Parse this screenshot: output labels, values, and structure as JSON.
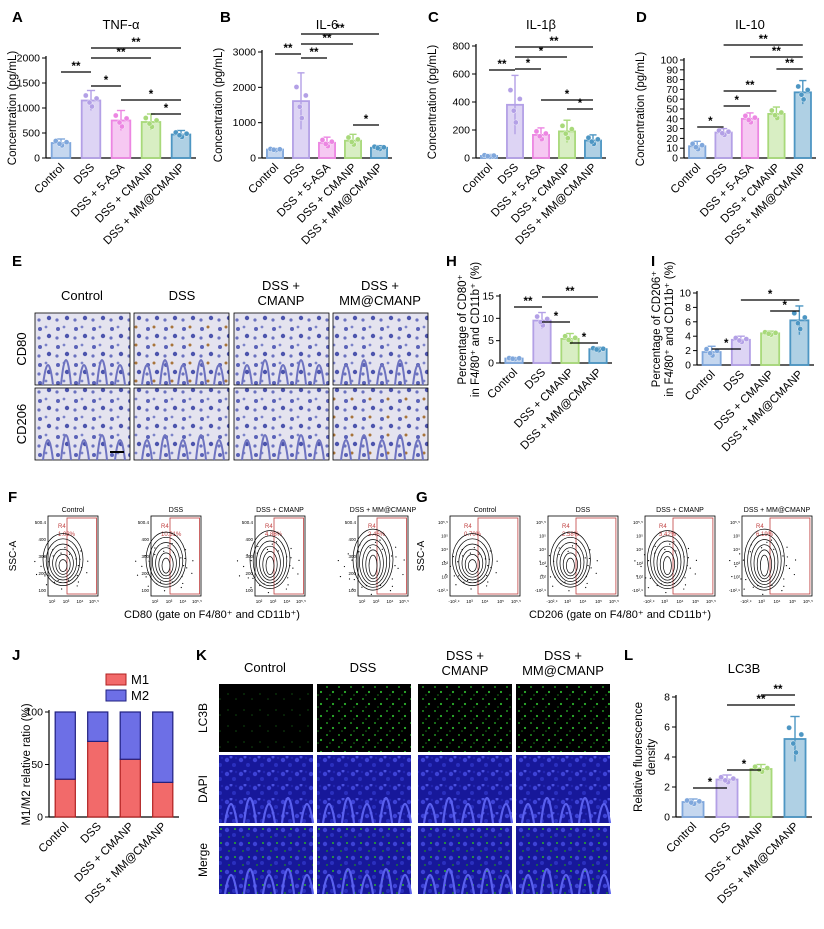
{
  "colors": {
    "control": "#7fa7dc",
    "dss": "#b3a0e6",
    "asa": "#ec86e2",
    "cmanp": "#a8d97a",
    "mm": "#4d96c3",
    "m1": "#f26a6a",
    "m2": "#6d6fe6",
    "tissue": "#3a3dc2"
  },
  "panels": {
    "A": "A",
    "B": "B",
    "C": "C",
    "D": "D",
    "E": "E",
    "F": "F",
    "G": "G",
    "H": "H",
    "I": "I",
    "J": "J",
    "K": "K",
    "L": "L"
  },
  "sig": {
    "one": "*",
    "two": "**"
  },
  "cytokine_ylabel": "Concentration (pg/mL)",
  "chart_data": [
    {
      "id": "A",
      "type": "bar",
      "title": "TNF-α",
      "ylabel": "Concentration (pg/mL)",
      "categories": [
        "Control",
        "DSS",
        "DSS + 5-ASA",
        "DSS + CMANP",
        "DSS + MM@CMANP"
      ],
      "values": [
        300,
        1150,
        750,
        720,
        470
      ],
      "errors": [
        80,
        200,
        200,
        160,
        80
      ],
      "ylim": [
        0,
        2000
      ],
      "yticks": [
        0,
        500,
        1000,
        1500,
        2000
      ],
      "brackets": [
        [
          "DSS",
          "Control",
          "**"
        ],
        [
          "DSS",
          "DSS + 5-ASA",
          "*"
        ],
        [
          "DSS",
          "DSS + CMANP",
          "**"
        ],
        [
          "DSS",
          "DSS + MM@CMANP",
          "**"
        ],
        [
          "DSS + 5-ASA",
          "DSS + MM@CMANP",
          "*"
        ],
        [
          "DSS + CMANP",
          "DSS + MM@CMANP",
          "*"
        ]
      ]
    },
    {
      "id": "B",
      "type": "bar",
      "title": "IL-6",
      "ylabel": "Concentration (pg/mL)",
      "categories": [
        "Control",
        "DSS",
        "DSS + 5-ASA",
        "DSS + CMANP",
        "DSS + MM@CMANP"
      ],
      "values": [
        240,
        1610,
        430,
        490,
        290
      ],
      "errors": [
        30,
        800,
        160,
        180,
        60
      ],
      "ylim": [
        0,
        3000
      ],
      "yticks": [
        0,
        1000,
        2000,
        3000
      ],
      "brackets": [
        [
          "Control",
          "DSS",
          "**"
        ],
        [
          "DSS",
          "DSS + 5-ASA",
          "**"
        ],
        [
          "DSS",
          "DSS + CMANP",
          "**"
        ],
        [
          "DSS",
          "DSS + MM@CMANP",
          "**"
        ],
        [
          "DSS + CMANP",
          "DSS + MM@CMANP",
          "*"
        ]
      ]
    },
    {
      "id": "C",
      "type": "bar",
      "title": "IL-1β",
      "ylabel": "Concentration (pg/mL)",
      "categories": [
        "Control",
        "DSS",
        "DSS + 5-ASA",
        "DSS + CMANP",
        "DSS + MM@CMANP"
      ],
      "values": [
        15,
        380,
        165,
        190,
        125
      ],
      "errors": [
        10,
        210,
        50,
        80,
        40
      ],
      "ylim": [
        0,
        800
      ],
      "yticks": [
        0,
        200,
        400,
        600,
        800
      ],
      "brackets": [
        [
          "Control",
          "DSS",
          "**"
        ],
        [
          "DSS",
          "DSS + 5-ASA",
          "*"
        ],
        [
          "DSS",
          "DSS + CMANP",
          "*"
        ],
        [
          "DSS",
          "DSS + MM@CMANP",
          "**"
        ],
        [
          "DSS + 5-ASA",
          "DSS + MM@CMANP",
          "*"
        ],
        [
          "DSS + CMANP",
          "DSS + MM@CMANP",
          "*"
        ]
      ]
    },
    {
      "id": "D",
      "type": "bar",
      "title": "IL-10",
      "ylabel": "Concentration (pg/mL)",
      "categories": [
        "Control",
        "DSS",
        "DSS + 5-ASA",
        "DSS + CMANP",
        "DSS + MM@CMANP"
      ],
      "values": [
        12,
        26,
        40,
        45,
        67
      ],
      "errors": [
        5,
        4,
        6,
        7,
        12
      ],
      "ylim": [
        0,
        100
      ],
      "yticks": [
        0,
        10,
        20,
        30,
        40,
        50,
        60,
        70,
        80,
        90,
        100
      ],
      "brackets": [
        [
          "Control",
          "DSS",
          "*"
        ],
        [
          "DSS",
          "DSS + 5-ASA",
          "*"
        ],
        [
          "DSS",
          "DSS + CMANP",
          "**"
        ],
        [
          "DSS",
          "DSS + MM@CMANP",
          "**"
        ],
        [
          "DSS + 5-ASA",
          "DSS + MM@CMANP",
          "**"
        ],
        [
          "DSS + CMANP",
          "DSS + MM@CMANP",
          "**"
        ]
      ]
    },
    {
      "id": "H",
      "type": "bar",
      "title": "",
      "ylabel_l1": "Percentage of CD80⁺",
      "ylabel_l2": "in F4/80⁺ and CD11b⁺ (%)",
      "categories": [
        "Control",
        "DSS",
        "DSS + CMANP",
        "DSS + MM@CMANP"
      ],
      "values": [
        1.0,
        9.5,
        5.4,
        3.1
      ],
      "errors": [
        0.2,
        1.8,
        1.2,
        0.4
      ],
      "ylim": [
        0,
        15
      ],
      "yticks": [
        0,
        5,
        10,
        15
      ],
      "brackets": [
        [
          "Control",
          "DSS",
          "**"
        ],
        [
          "DSS",
          "DSS + CMANP",
          "*"
        ],
        [
          "DSS",
          "DSS + MM@CMANP",
          "**"
        ],
        [
          "DSS + CMANP",
          "DSS + MM@CMANP",
          "*"
        ]
      ]
    },
    {
      "id": "I",
      "type": "bar",
      "title": "",
      "ylabel_l1": "Percentage of CD206⁺",
      "ylabel_l2": "in F4/80⁺ and CD11b⁺ (%)",
      "categories": [
        "Control",
        "DSS",
        "DSS + CMANP",
        "DSS + MM@CMANP"
      ],
      "values": [
        1.8,
        3.5,
        4.4,
        6.2
      ],
      "errors": [
        0.8,
        0.5,
        0.3,
        2.0
      ],
      "ylim": [
        0,
        10
      ],
      "yticks": [
        0,
        2,
        4,
        6,
        8,
        10
      ],
      "brackets": [
        [
          "Control",
          "DSS",
          "*"
        ],
        [
          "DSS",
          "DSS + MM@CMANP",
          "*"
        ],
        [
          "DSS + CMANP",
          "DSS + MM@CMANP",
          "*"
        ]
      ]
    },
    {
      "id": "J",
      "type": "bar",
      "stacked": true,
      "title": "",
      "ylabel": "M1/M2 relative ratio (%)",
      "categories": [
        "Control",
        "DSS",
        "DSS + CMANP",
        "DSS + MM@CMANP"
      ],
      "series": [
        {
          "name": "M1",
          "values": [
            36,
            72,
            55,
            33
          ]
        },
        {
          "name": "M2",
          "values": [
            64,
            28,
            45,
            67
          ]
        }
      ],
      "ylim": [
        0,
        100
      ],
      "yticks": [
        0,
        50,
        100
      ]
    },
    {
      "id": "L",
      "type": "bar",
      "title": "LC3B",
      "ylabel_l1": "Relative fluorescence",
      "ylabel_l2": "density",
      "categories": [
        "Control",
        "DSS",
        "DSS + CMANP",
        "DSS + MM@CMANP"
      ],
      "values": [
        1.0,
        2.5,
        3.2,
        5.2
      ],
      "errors": [
        0.2,
        0.3,
        0.3,
        1.5
      ],
      "ylim": [
        0,
        8
      ],
      "yticks": [
        0,
        2,
        4,
        6,
        8
      ],
      "brackets": [
        [
          "Control",
          "DSS",
          "*"
        ],
        [
          "DSS",
          "DSS + CMANP",
          "*"
        ],
        [
          "DSS",
          "DSS + MM@CMANP",
          "**"
        ],
        [
          "DSS + CMANP",
          "DSS + MM@CMANP",
          "**"
        ]
      ]
    }
  ],
  "E": {
    "cols": [
      "Control",
      "DSS",
      "DSS +",
      "CMANP",
      "DSS +",
      "MM@CMANP"
    ],
    "rows": [
      "CD80",
      "CD206"
    ]
  },
  "F": {
    "titles": [
      "Control",
      "DSS",
      "DSS + CMANP",
      "DSS + MM@CMANP"
    ],
    "gate": "R4",
    "percents": [
      "1.03%",
      "10.31%",
      "4.88%",
      "2.46%"
    ],
    "ylabel": "SSC-A",
    "xlabel": "CD80 (gate on F4/80⁺ and CD11b⁺)",
    "yticks": [
      "500.4",
      "400",
      "300",
      "200",
      "100"
    ],
    "xticks": [
      "10²",
      "10³",
      "10⁴",
      "10⁵.⁵"
    ]
  },
  "G": {
    "titles": [
      "Control",
      "DSS",
      "DSS + CMANP",
      "DSS + MM@CMANP"
    ],
    "gate": "R4",
    "percents": [
      "0.70%",
      "2.58%",
      "3.42%",
      "6.19%"
    ],
    "ylabel": "SSC-A",
    "xlabel": "CD206 (gate on F4/80⁺ and CD11b⁺)",
    "yticks": [
      "10⁵.⁵",
      "10⁵",
      "10⁴",
      "10³",
      "10²",
      "-10².⁹"
    ],
    "xticks": [
      "-10².⁹",
      "10³",
      "10⁴",
      "10⁵",
      "10⁵.⁵"
    ]
  },
  "K": {
    "cols": [
      "Control",
      "DSS",
      "DSS +",
      "CMANP",
      "DSS +",
      "MM@CMANP"
    ],
    "rows": [
      "LC3B",
      "DAPI",
      "Merge"
    ]
  },
  "legend_J": [
    "M1",
    "M2"
  ]
}
